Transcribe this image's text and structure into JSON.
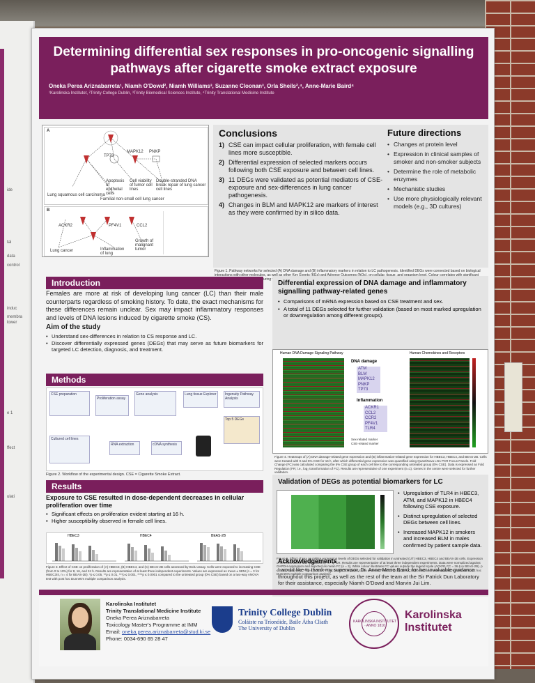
{
  "title": "Determining differential sex responses in pro-oncogenic signalling pathways after cigarette smoke extract exposure",
  "authors": "Oneka Perea Ariznabarreta¹, Niamh O'Dowd², Niamh Williams³, Suzanne Cloonan³, Orla Sheils²,⁴, Anne-Marie Baird⁴",
  "affiliations": "¹Karolinska Institutet, ²Trinity College Dublin, ³Trinity Biomedical Sciences Institute, ⁴Trinity Translational Medicine Institute",
  "fig1": {
    "panel_a": "A",
    "panel_b": "B",
    "labels_a": [
      "Apoptosis of epithelial cells",
      "Cell viability of tumor cell lines",
      "Double-stranded DNA break repair of lung cancer cell lines",
      "Lung squamous cell carcinoma",
      "Familial non-small cell lung cancer",
      "TP73",
      "MAPK12",
      "PNKP"
    ],
    "labels_b": [
      "ACKR2",
      "PF4V1",
      "CCL2",
      "Lung cancer",
      "Inflammation of lung",
      "Growth of malignant tumor"
    ],
    "caption": "Figure 1. Pathway networks for selected (A) DNA damage and (B) inflammatory markers in relation to LC pathogenesis. Identified DEGs were connected based on biological interactions with other molecules, as well as other Key Events (KEs) and Adverse Outcomes (AOs), on cellular, tissue, and organism level. Colour correlates with significant expression changes identified during validation in relation to any comparisons in any cell line (UT vs. CSE or between UT cell lines)."
  },
  "conclusions": {
    "heading": "Conclusions",
    "items": [
      {
        "n": "1)",
        "text": "CSE can impact cellular proliferation, with female cell lines more susceptible."
      },
      {
        "n": "2)",
        "text": "Differential expression of selected markers occurs following both CSE exposure and between cell lines."
      },
      {
        "n": "3)",
        "text": "11 DEGs were validated as potential mediators of CSE-exposure and sex-differences in lung cancer pathogenesis."
      },
      {
        "n": "4)",
        "text": "Changes in BLM and MAPK12 are markers of interest as they were confirmed by in silico data."
      }
    ]
  },
  "future": {
    "heading": "Future directions",
    "items": [
      "Changes at protein level",
      "Expression in clinical samples of smoker and non-smoker subjects",
      "Determine the role of metabolic enzymes",
      "Mechanistic studies",
      "Use more physiologically relevant models (e.g., 3D cultures)"
    ]
  },
  "introduction": {
    "heading": "Introduction",
    "text": "Females are more at risk of developing lung cancer (LC) than their male counterparts regardless of smoking history. To date, the exact mechanisms for these differences remain unclear. Sex may impact inflammatory responses and levels of DNA lesions induced by cigarette smoke (CS).",
    "aim_heading": "Aim of the study",
    "aims": [
      "Understand sex-differences in relation to CS response and LC.",
      "Discover differentially expressed genes (DEGs) that may serve as future biomarkers for targeted LC detection, diagnosis, and treatment."
    ]
  },
  "methods": {
    "heading": "Methods",
    "boxes": [
      "CSE preparation",
      "Proliferation assay",
      "Gene analysis",
      "Lung tissue Explorer",
      "Ingenuity Pathway Analysis",
      "Cultured cell lines",
      "RNA extraction",
      "cDNA synthesis",
      "Top 5 DEGs"
    ],
    "caption": "Figure 2. Workflow of the experimental design. CSE = Cigarette Smoke Extract."
  },
  "results": {
    "heading": "Results",
    "subheading": "Exposure to CSE resulted in dose-dependent decreases in cellular proliferation over time",
    "items": [
      "Significant effects on proliferation evident starting at 16 h.",
      "Higher susceptibility observed in female cell lines."
    ],
    "panels": [
      "HBEC3",
      "HBEC4",
      "BEAS-2B"
    ],
    "caption": "Figure 3. Effect of CSE on proliferation of (A) HBEC3, (B) HBEC4, and (C) BEAS-2B cells assessed by BrdU assay. Cells were exposed to increasing CSE (from 0 to 10%) for 8, 16, and 24 h. Results are representative of at least three independent experiments. Values are expressed as mean ± SEM (n = 3 for HBEC3/4, n = 4 for BEAS-2B). *p ≤ 0.05, **p ≤ 0.01, ***p ≤ 0.001, ****p ≤ 0.0001 compared to the untreated group (0% CSE) based on a two-way ANOVA test with post hoc Dunnett's multiple comparison analysis."
  },
  "differential": {
    "heading": "Differential expression of DNA damage and inflammatory signalling pathway-related genes",
    "items": [
      "Comparisons of mRNA expression based on CSE treatment and sex.",
      "A total of 11 DEGs selected for further validation (based on most marked upregulation or downregulation among different groups)."
    ],
    "heat_titles": [
      "Human DNA Damage Signaling Pathway",
      "Human Chemokines and Receptors"
    ],
    "dna_label": "DNA damage",
    "dna_genes": [
      "ATM",
      "BLM",
      "MAPK12",
      "PNKP",
      "TP73"
    ],
    "inflam_label": "Inflammation",
    "inflam_genes": [
      "ACKR1",
      "CCL2",
      "CCR2",
      "PF4V1",
      "TLR4"
    ],
    "legend": [
      "Sex-related marker",
      "CSE-related marker"
    ],
    "caption": "Figure 4. Heatmaps of (A) DNA damage-related gene expression and (B) inflammation-related gene expression for HBEC3, HBEC4, and BEAS-2B. Cells were treated with 0 and 5% CSE for 16 h, after which differential gene expression was quantified using QuantiNova LNA PCR Focus Panels. Fold Change (FC) was calculated comparing the 5% CSE group of each cell line to the corresponding untreated group (0% CSE). Data is expressed as Fold Regulation (FR; i.e., log₂ transformation of FC). Results are representative of one experiment (n=1). Genes in the centre were selected for further validation."
  },
  "validation": {
    "heading": "Validation of DEGs as potential biomarkers for LC",
    "items": [
      "Upregulation of TLR4 in HBEC3, ATM, and MAPK12 in HBEC4 following CSE exposure.",
      "Distinct upregulation of selected DEGs between cell lines.",
      "Increased MAPK12 in smokers and increased BLM in males confirmed by patient sample data."
    ],
    "caption": "Figure 5. Effect of sex on mRNA expression levels of DEGs selected for validation in untreated (UT) HBEC3, HBEC4 and BEAS-2B cells. Expression of selected DEGs was quantified by RT-qPCR. Results are representative of at least three independent experiments. Data were normalized against GAPDH expression and depicted as mean FC (n = 3). White colour illustrates FC values outside the legend scale (ACKR1 FC = 36.6 in BEAS-2B). p ≤ 0.05, ** p ≤ 0.01, *** p ≤ 0.001, **** p ≤ 0.0001 compared to the untreated HBEC3 group (0% CSE) based on a one-way ANOVA test with post hoc Dunnett's multiple comparison analysis."
  },
  "acknowledgements": {
    "heading": "Acknowledgements",
    "text": "I would like to thank my supervisor, Dr. Anne-Marie Baird, for her invaluable guidance throughout this project, as well as the rest of the team at the Sir Patrick Dun Laboratory for their assistance, especially Niamh O'Dowd and Marvin Jui Lim."
  },
  "contact": {
    "line1": "Karolinska Institutet",
    "line2": "Trinity Translational Medicine Institute",
    "name": "Oneka Perea Ariznabarreta",
    "program": "Toxicology Master's Programme at IMM",
    "email_label": "Email:",
    "email": "oneka.perea.ariznabarreta@stud.ki.se",
    "phone": "Phone: 0034-690 65 28 47"
  },
  "logos": {
    "tcd_name": "Trinity College Dublin",
    "tcd_irish": "Coláiste na Tríonóide, Baile Átha Cliath",
    "tcd_sub": "The University of Dublin",
    "ki_seal": "KAROLINSKA INSTITUTET · ANNO 1810",
    "ki_name1": "Karolinska",
    "ki_name2": "Institutet"
  },
  "colors": {
    "brand": "#7a1f5c",
    "panel": "#e4e4e4",
    "tcd_blue": "#1b3d8c"
  },
  "side_fragments": [
    "ide",
    "tal",
    "data",
    "control",
    "induc",
    "membra",
    "lower",
    "e 1",
    "ffect",
    "ulati"
  ]
}
